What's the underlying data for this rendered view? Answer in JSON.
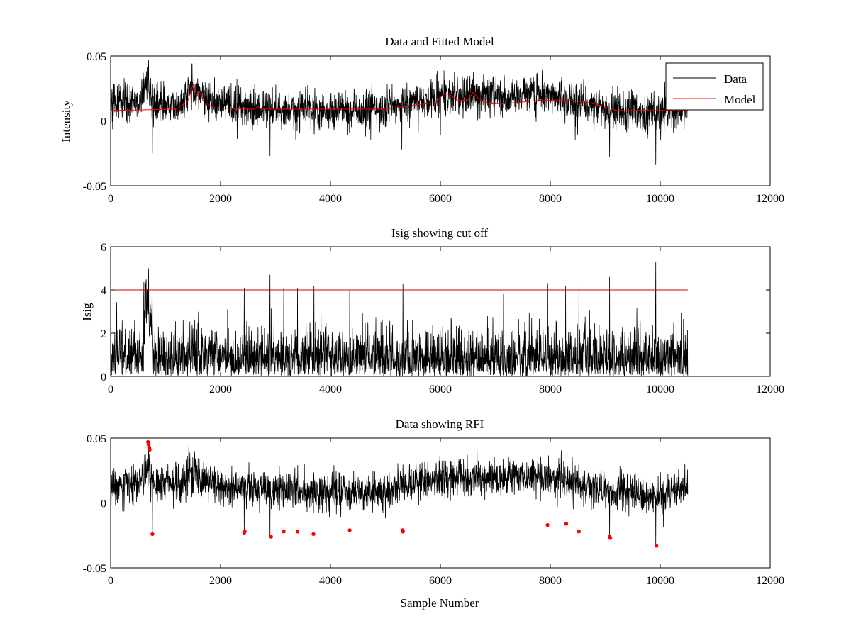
{
  "chart_data": [
    {
      "type": "line",
      "title": "Data and Fitted Model",
      "xlabel": "",
      "ylabel": "Intensity",
      "xlim": [
        0,
        12000
      ],
      "ylim": [
        -0.05,
        0.05
      ],
      "xticks": [
        "0",
        "2000",
        "4000",
        "6000",
        "8000",
        "10000",
        "12000"
      ],
      "yticks": [
        "-0.05",
        "0",
        "0.05"
      ],
      "legend_position": "top-right",
      "series": [
        {
          "name": "Data",
          "color": "#000000",
          "style": "noisy",
          "x_end": 10500,
          "noise": 0.0075,
          "trend": [
            [
              0,
              0.012
            ],
            [
              500,
              0.015
            ],
            [
              680,
              0.03
            ],
            [
              720,
              0.022
            ],
            [
              800,
              0.012
            ],
            [
              1300,
              0.013
            ],
            [
              1480,
              0.028
            ],
            [
              1600,
              0.02
            ],
            [
              2000,
              0.012
            ],
            [
              3000,
              0.009
            ],
            [
              4000,
              0.008
            ],
            [
              5000,
              0.01
            ],
            [
              5800,
              0.016
            ],
            [
              6200,
              0.02
            ],
            [
              6800,
              0.018
            ],
            [
              7600,
              0.02
            ],
            [
              8200,
              0.018
            ],
            [
              9000,
              0.01
            ],
            [
              10000,
              0.005
            ],
            [
              10500,
              0.012
            ]
          ],
          "spikes": [
            [
              690,
              0.047
            ],
            [
              760,
              -0.025
            ],
            [
              1480,
              0.044
            ],
            [
              2900,
              -0.027
            ],
            [
              5300,
              -0.022
            ],
            [
              9080,
              -0.028
            ],
            [
              9920,
              -0.034
            ]
          ]
        },
        {
          "name": "Model",
          "color": "#ff0000",
          "style": "line",
          "points": [
            [
              0,
              0.008
            ],
            [
              1200,
              0.009
            ],
            [
              1400,
              0.015
            ],
            [
              1500,
              0.028
            ],
            [
              1560,
              0.02
            ],
            [
              1620,
              0.022
            ],
            [
              1700,
              0.014
            ],
            [
              1900,
              0.01
            ],
            [
              2600,
              0.009
            ],
            [
              2680,
              0.011
            ],
            [
              2750,
              0.009
            ],
            [
              5000,
              0.009
            ],
            [
              5700,
              0.013
            ],
            [
              5900,
              0.014
            ],
            [
              6050,
              0.02
            ],
            [
              6150,
              0.021
            ],
            [
              6300,
              0.016
            ],
            [
              6500,
              0.016
            ],
            [
              6600,
              0.022
            ],
            [
              6700,
              0.017
            ],
            [
              6900,
              0.013
            ],
            [
              7400,
              0.014
            ],
            [
              7800,
              0.016
            ],
            [
              8300,
              0.016
            ],
            [
              8700,
              0.014
            ],
            [
              9000,
              0.011
            ],
            [
              9200,
              0.008
            ],
            [
              10500,
              0.008
            ]
          ]
        }
      ]
    },
    {
      "type": "line",
      "title": "Isig showing cut off",
      "xlabel": "",
      "ylabel": "Isig",
      "xlim": [
        0,
        12000
      ],
      "ylim": [
        0,
        6
      ],
      "xticks": [
        "0",
        "2000",
        "4000",
        "6000",
        "8000",
        "10000",
        "12000"
      ],
      "yticks": [
        "0",
        "2",
        "4",
        "6"
      ],
      "series": [
        {
          "name": "Isig",
          "color": "#000000",
          "style": "abs",
          "x_end": 10500,
          "base": 0.8,
          "noise": 0.75,
          "spikes": [
            [
              690,
              5.0
            ],
            [
              2900,
              4.7
            ],
            [
              2430,
              4.1
            ],
            [
              3150,
              4.1
            ],
            [
              3400,
              4.1
            ],
            [
              3700,
              4.2
            ],
            [
              4350,
              4.0
            ],
            [
              5320,
              4.3
            ],
            [
              7150,
              3.8
            ],
            [
              7950,
              4.3
            ],
            [
              8280,
              4.2
            ],
            [
              8520,
              4.5
            ],
            [
              9080,
              4.6
            ],
            [
              9920,
              5.3
            ]
          ]
        },
        {
          "name": "Cut off",
          "color": "#cc0000",
          "style": "line",
          "points": [
            [
              0,
              4.0
            ],
            [
              10500,
              4.0
            ]
          ]
        }
      ]
    },
    {
      "type": "scatter",
      "title": "Data showing RFI",
      "xlabel": "Sample Number",
      "ylabel": "",
      "xlim": [
        0,
        12000
      ],
      "ylim": [
        -0.05,
        0.05
      ],
      "xticks": [
        "0",
        "2000",
        "4000",
        "6000",
        "8000",
        "10000",
        "12000"
      ],
      "yticks": [
        "-0.05",
        "0",
        "0.05"
      ],
      "series": [
        {
          "name": "Data",
          "color": "#000000",
          "style": "noisy",
          "x_end": 10500,
          "noise": 0.0075,
          "trend": [
            [
              0,
              0.012
            ],
            [
              500,
              0.015
            ],
            [
              680,
              0.03
            ],
            [
              720,
              0.022
            ],
            [
              800,
              0.012
            ],
            [
              1300,
              0.013
            ],
            [
              1480,
              0.028
            ],
            [
              1600,
              0.02
            ],
            [
              2000,
              0.012
            ],
            [
              3000,
              0.009
            ],
            [
              4000,
              0.008
            ],
            [
              5000,
              0.01
            ],
            [
              5800,
              0.016
            ],
            [
              6200,
              0.02
            ],
            [
              6800,
              0.018
            ],
            [
              7600,
              0.02
            ],
            [
              8200,
              0.018
            ],
            [
              9000,
              0.01
            ],
            [
              10000,
              0.005
            ],
            [
              10500,
              0.012
            ]
          ],
          "spikes": [
            [
              690,
              0.047
            ],
            [
              760,
              -0.024
            ],
            [
              2430,
              -0.023
            ],
            [
              2900,
              -0.026
            ],
            [
              9080,
              -0.027
            ],
            [
              9920,
              -0.033
            ]
          ]
        },
        {
          "name": "RFI",
          "color": "#ff0000",
          "style": "markers",
          "points": [
            [
              680,
              0.047
            ],
            [
              690,
              0.045
            ],
            [
              700,
              0.043
            ],
            [
              705,
              0.042
            ],
            [
              710,
              0.041
            ],
            [
              760,
              -0.024
            ],
            [
              2430,
              -0.023
            ],
            [
              2440,
              -0.022
            ],
            [
              2920,
              -0.026
            ],
            [
              3150,
              -0.022
            ],
            [
              3400,
              -0.022
            ],
            [
              3690,
              -0.024
            ],
            [
              4350,
              -0.021
            ],
            [
              5310,
              -0.021
            ],
            [
              5320,
              -0.022
            ],
            [
              7950,
              -0.017
            ],
            [
              8290,
              -0.016
            ],
            [
              8520,
              -0.022
            ],
            [
              9080,
              -0.026
            ],
            [
              9090,
              -0.027
            ],
            [
              9930,
              -0.033
            ]
          ]
        }
      ]
    }
  ]
}
